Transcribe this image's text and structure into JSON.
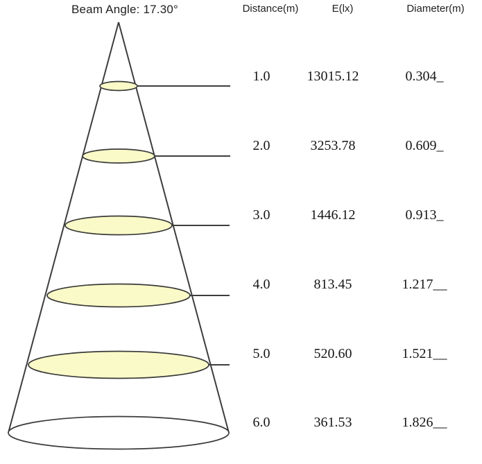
{
  "title": "Beam Angle: 17.30°",
  "table": {
    "headers": {
      "distance": "Distance(m)",
      "e": "E(lx)",
      "diameter": "Diameter(m)"
    },
    "rows": [
      {
        "distance": "1.0",
        "e": "13015.12",
        "diameter": "0.304_"
      },
      {
        "distance": "2.0",
        "e": "3253.78",
        "diameter": "0.609_"
      },
      {
        "distance": "3.0",
        "e": "1446.12",
        "diameter": "0.913_"
      },
      {
        "distance": "4.0",
        "e": "813.45",
        "diameter": "1.217__"
      },
      {
        "distance": "5.0",
        "e": "520.60",
        "diameter": "1.521__"
      },
      {
        "distance": "6.0",
        "e": "361.53",
        "diameter": "1.826__"
      }
    ]
  },
  "chart_data": {
    "type": "table",
    "title": "Beam Angle: 17.30°",
    "beam_angle_degrees": 17.3,
    "columns": [
      "Distance(m)",
      "E(lx)",
      "Diameter(m)"
    ],
    "rows": [
      [
        1.0,
        13015.12,
        0.304
      ],
      [
        2.0,
        3253.78,
        0.609
      ],
      [
        3.0,
        1446.12,
        0.913
      ],
      [
        4.0,
        813.45,
        1.217
      ],
      [
        5.0,
        520.6,
        1.521
      ],
      [
        6.0,
        361.53,
        1.826
      ]
    ]
  },
  "colors": {
    "beam_fill": "#FAFAC8",
    "line": "#3d3d3d",
    "text": "#1f1f1f"
  }
}
